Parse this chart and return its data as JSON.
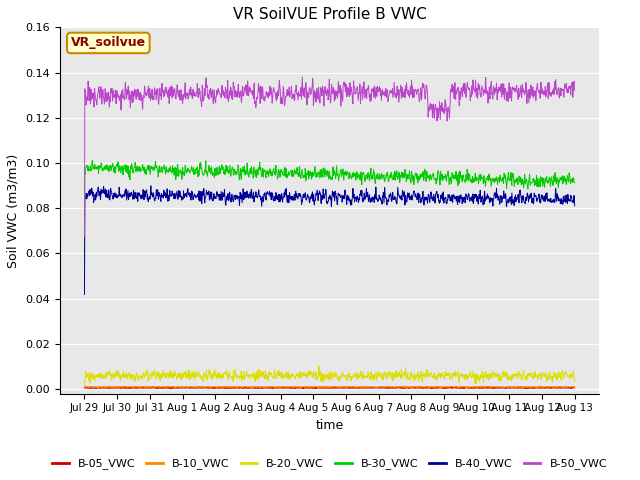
{
  "title": "VR SoilVUE Profile B VWC",
  "ylabel": "Soil VWC (m3/m3)",
  "xlabel": "time",
  "ylim": [
    -0.002,
    0.16
  ],
  "yticks": [
    0.0,
    0.02,
    0.04,
    0.06,
    0.08,
    0.1,
    0.12,
    0.14,
    0.16
  ],
  "date_labels": [
    "Jul 29",
    "Jul 30",
    "Jul 31",
    "Aug 1",
    "Aug 2",
    "Aug 3",
    "Aug 4",
    "Aug 5",
    "Aug 6",
    "Aug 7",
    "Aug 8",
    "Aug 9",
    "Aug 10",
    "Aug 11",
    "Aug 12",
    "Aug 13"
  ],
  "series_order": [
    "B-05_VWC",
    "B-10_VWC",
    "B-20_VWC",
    "B-30_VWC",
    "B-40_VWC",
    "B-50_VWC"
  ],
  "series": {
    "B-05_VWC": {
      "color": "#cc0000",
      "mean": 0.0,
      "noise": 0.0002
    },
    "B-10_VWC": {
      "color": "#ff8800",
      "mean": 0.001,
      "noise": 0.0001
    },
    "B-20_VWC": {
      "color": "#dddd00",
      "mean": 0.006,
      "noise": 0.0015
    },
    "B-30_VWC": {
      "color": "#00cc00",
      "mean": 0.095,
      "noise": 0.002
    },
    "B-40_VWC": {
      "color": "#000099",
      "mean": 0.086,
      "noise": 0.002
    },
    "B-50_VWC": {
      "color": "#bb44cc",
      "mean": 0.131,
      "noise": 0.003
    }
  },
  "n_points": 1500,
  "legend_label": "VR_soilvue",
  "legend_box_color": "#ffffcc",
  "legend_box_edge": "#cc8800",
  "legend_text_color": "#880000",
  "bg_color": "#e8e8e8",
  "figsize": [
    6.4,
    4.8
  ],
  "dpi": 100
}
